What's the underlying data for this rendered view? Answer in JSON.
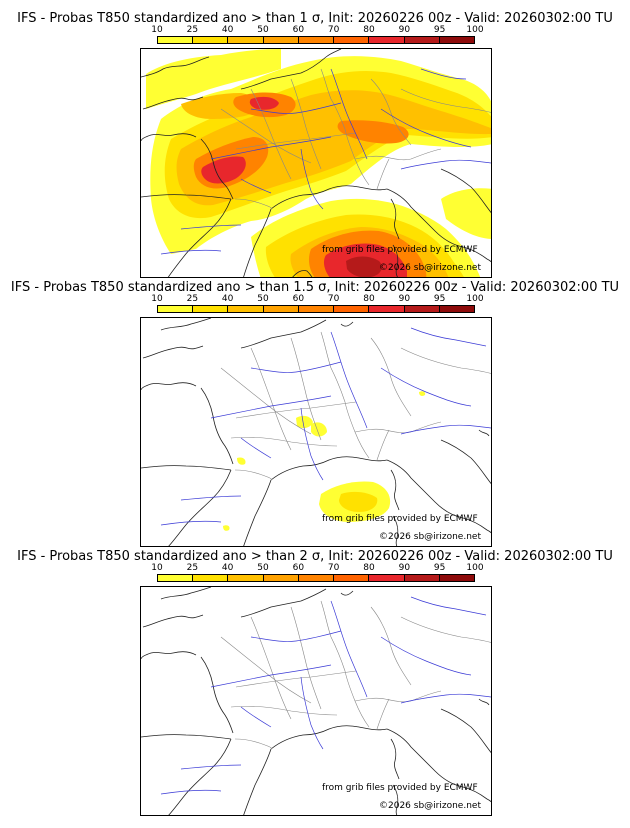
{
  "colorbar": {
    "ticks": [
      "10",
      "25",
      "40",
      "50",
      "60",
      "70",
      "80",
      "90",
      "95",
      "100"
    ],
    "colors": [
      "#ffff33",
      "#ffe100",
      "#ffc000",
      "#ffa200",
      "#ff8300",
      "#ff6300",
      "#e8272c",
      "#b51a1a",
      "#8e0b0b"
    ]
  },
  "credits": {
    "source": "from grib files provided by ECMWF",
    "author": "©2026 sb@irizone.net"
  },
  "panels": [
    {
      "title": "IFS - Probas T850  standardized ano > than 1 σ, Init: 20260226 00z - Valid: 20260302:00 TU"
    },
    {
      "title": "IFS - Probas T850  standardized ano > than 1.5 σ, Init: 20260226 00z - Valid: 20260302:00 TU"
    },
    {
      "title": "IFS - Probas T850  standardized ano > than 2 σ, Init: 20260226 00z - Valid: 20260302:00 TU"
    }
  ]
}
